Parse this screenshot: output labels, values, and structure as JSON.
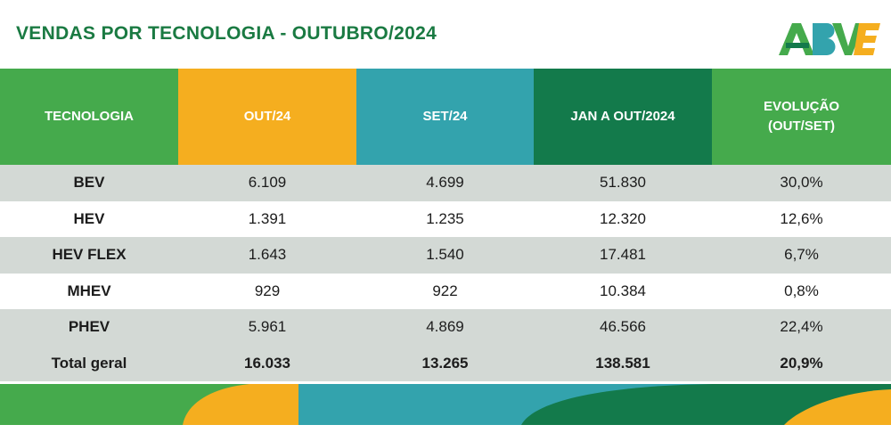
{
  "title": "VENDAS POR TECNOLOGIA - OUTUBRO/2024",
  "logo": {
    "text": "ABVE"
  },
  "colors": {
    "brand_green": "#1a7a42",
    "header_green": "#45aa4c",
    "header_orange": "#f5ae1f",
    "header_teal": "#33a3ad",
    "header_dark_green": "#137a4b",
    "row_gray": "#d3d9d5"
  },
  "table": {
    "headers": [
      "TECNOLOGIA",
      "OUT/24",
      "SET/24",
      "JAN A OUT/2024",
      "EVOLUÇÃO",
      "(OUT/SET)"
    ],
    "rows": [
      [
        "BEV",
        "6.109",
        "4.699",
        "51.830",
        "30,0%"
      ],
      [
        "HEV",
        "1.391",
        "1.235",
        "12.320",
        "12,6%"
      ],
      [
        "HEV FLEX",
        "1.643",
        "1.540",
        "17.481",
        "6,7%"
      ],
      [
        "MHEV",
        "929",
        "922",
        "10.384",
        "0,8%"
      ],
      [
        "PHEV",
        "5.961",
        "4.869",
        "46.566",
        "22,4%"
      ],
      [
        "Total geral",
        "16.033",
        "13.265",
        "138.581",
        "20,9%"
      ]
    ]
  }
}
